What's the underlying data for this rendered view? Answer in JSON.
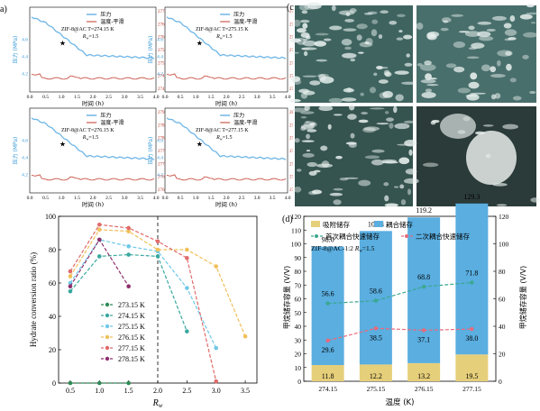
{
  "panel_labels": {
    "a": "a)",
    "c": "(c",
    "d": "(d)"
  },
  "small_panels": [
    {
      "id": "p1",
      "sample": "ZIF-8@AC",
      "T": "T=274.15 K",
      "rw": "R",
      "rw_sub": "w",
      "rw_val": "=1.5",
      "legend": [
        "压力",
        "温度-平滑"
      ],
      "ylabel_left": "压力 (MPa)",
      "ylabel_right": "温度 (K)",
      "xlabel": "时间 (h)",
      "yticks_left": [
        "4.2",
        "4.4",
        "4.6"
      ],
      "yticks_right": [
        "274.0",
        "274.5",
        "275.0",
        "275.5",
        "276.0",
        "276.5",
        "277.0"
      ],
      "xticks": [
        "0.0",
        "0.5",
        "1.0",
        "1.5",
        "2.0",
        "2.5",
        "3.0",
        "3.5",
        "4.0"
      ]
    },
    {
      "id": "p2",
      "sample": "ZIF-8@AC",
      "T": "T=275.15 K",
      "rw": "R",
      "rw_sub": "w",
      "rw_val": "=1.5",
      "legend": [
        "压力",
        "温度-平滑"
      ],
      "ylabel_left": "压力 (MPa)",
      "ylabel_right": "温度 (K)",
      "xlabel": "时间 (h)",
      "yticks_left": [
        "4.2",
        "4.4",
        "4.6"
      ],
      "yticks_right": [
        "275.0",
        "275.5",
        "276.0",
        "276.5",
        "277.0",
        "277.5",
        "278.0"
      ],
      "xticks": [
        "0.0",
        "0.5",
        "1.0",
        "1.5",
        "2.0",
        "2.5",
        "3.0",
        "3.5",
        "4.0"
      ]
    },
    {
      "id": "p3",
      "sample": "ZIF-8@AC",
      "T": "T=276.15 K",
      "rw": "R",
      "rw_sub": "w",
      "rw_val": "=1.5",
      "legend": [
        "压力",
        "温度-平滑"
      ],
      "ylabel_left": "压力 (MPa)",
      "ylabel_right": "温度 (K)",
      "xlabel": "时间 (h)",
      "yticks_left": [
        "4.2",
        "4.4",
        "4.6"
      ],
      "yticks_right": [
        "276.0",
        "276.5",
        "277.0",
        "277.5",
        "278.0",
        "278.5",
        "279.0"
      ],
      "xticks": [
        "0.0",
        "0.5",
        "1.0",
        "1.5",
        "2.0",
        "2.5",
        "3.0",
        "3.5",
        "4.0"
      ]
    },
    {
      "id": "p4",
      "sample": "ZIF-8@AC",
      "T": "T=277.15 K",
      "rw": "R",
      "rw_sub": "w",
      "rw_val": "=1.5",
      "legend": [
        "压力",
        "温度-平滑"
      ],
      "ylabel_left": "压力 (MPa)",
      "ylabel_right": "温度 (K)",
      "xlabel": "时间 (h)",
      "yticks_left": [
        "4.2",
        "4.4",
        "4.6"
      ],
      "yticks_right": [
        "277.0",
        "277.5",
        "278.0",
        "278.5",
        "279.0",
        "279.5",
        "280.0"
      ],
      "xticks": [
        "0.0",
        "0.5",
        "1.0",
        "1.5",
        "2.0",
        "2.5",
        "3.0",
        "3.5",
        "4.0"
      ]
    }
  ],
  "chart_data": [
    {
      "type": "line",
      "ylabel": "Hydrate conversion ratio (%)",
      "xlabel": "R",
      "xlabel_sub": "w",
      "xlim": [
        0.3,
        3.7
      ],
      "ylim": [
        0,
        100
      ],
      "xticks": [
        "0.5",
        "1.0",
        "1.5",
        "2.0",
        "2.5",
        "3.0",
        "3.5"
      ],
      "yticks": [
        "0",
        "20",
        "40",
        "60",
        "80",
        "100"
      ],
      "vline_x": 2.0,
      "series": [
        {
          "name": "273.15 K",
          "color": "#2e8b57",
          "x": [
            0.5,
            1.0,
            1.5
          ],
          "y": [
            0,
            0,
            0
          ]
        },
        {
          "name": "274.15 K",
          "color": "#3aa8a0",
          "x": [
            0.5,
            1.0,
            1.5,
            2.0,
            2.5
          ],
          "y": [
            55,
            76,
            77,
            76,
            31
          ]
        },
        {
          "name": "275.15 K",
          "color": "#6fc8e8",
          "x": [
            0.5,
            1.0,
            1.5,
            2.0,
            2.5,
            3.0
          ],
          "y": [
            60,
            86,
            82,
            79,
            57,
            21
          ]
        },
        {
          "name": "276.15 K",
          "color": "#f0c05a",
          "x": [
            0.5,
            1.0,
            1.5,
            2.0,
            2.5,
            3.0,
            3.5
          ],
          "y": [
            64,
            92,
            91,
            80,
            80,
            70,
            28
          ]
        },
        {
          "name": "277.15 K",
          "color": "#e06a6a",
          "x": [
            0.5,
            1.0,
            1.5,
            2.0,
            2.5,
            3.0
          ],
          "y": [
            67,
            95,
            93,
            85,
            75,
            1
          ]
        },
        {
          "name": "278.15 K",
          "color": "#8e2f6e",
          "x": [
            0.5,
            1.0,
            1.5
          ],
          "y": [
            58,
            86,
            58
          ]
        }
      ]
    },
    {
      "type": "bar",
      "xlabel": "温度 (K)",
      "ylabel_left": "甲烷储存容量 (V/V)",
      "ylabel_right": "甲烷储存容量 (V/V)",
      "annotation": "ZIF-8@AC-1:2 ",
      "annotation_rw": "R",
      "annotation_sub": "w",
      "annotation_val": "=1.5",
      "categories": [
        "274.15",
        "275.15",
        "276.15",
        "277.15"
      ],
      "ylim": [
        0,
        120
      ],
      "yticks": [
        "0",
        "10",
        "20",
        "30",
        "40",
        "50",
        "60",
        "70",
        "80",
        "90",
        "100",
        "110",
        "120"
      ],
      "yticks_right": [
        "0",
        "20",
        "40",
        "60",
        "80",
        "100",
        "120"
      ],
      "legend": [
        "吸附储存",
        "耦合储存",
        "首次耦合快速储存",
        "二次耦合快速储存"
      ],
      "series": [
        {
          "name": "吸附储存",
          "color": "#e6cf7a",
          "values": [
            11.8,
            12.2,
            13.2,
            19.5
          ],
          "labels": [
            "11.8",
            "12.2",
            "13.2",
            "19.5"
          ]
        },
        {
          "name": "耦合储存",
          "color": "#5aaee0",
          "values": [
            86.2,
            97.1,
            106.0,
            109.8
          ],
          "labels": [
            "56.6",
            "58.6",
            "68.8",
            "71.8"
          ]
        },
        {
          "name": "首次耦合快速储存",
          "color": "#3aa890",
          "values": [
            56.6,
            58.6,
            68.8,
            71.8
          ],
          "labels": [
            "56.6",
            "58.6",
            "68.8",
            "71.8"
          ]
        },
        {
          "name": "二次耦合快速储存",
          "color": "#e86a7a",
          "values": [
            29.6,
            38.5,
            37.1,
            38.0
          ],
          "labels": [
            "29.6",
            "38.5",
            "37.1",
            "38.0"
          ]
        }
      ],
      "totals": [
        "98.0",
        "109.3",
        "119.2",
        "129.3"
      ]
    }
  ]
}
